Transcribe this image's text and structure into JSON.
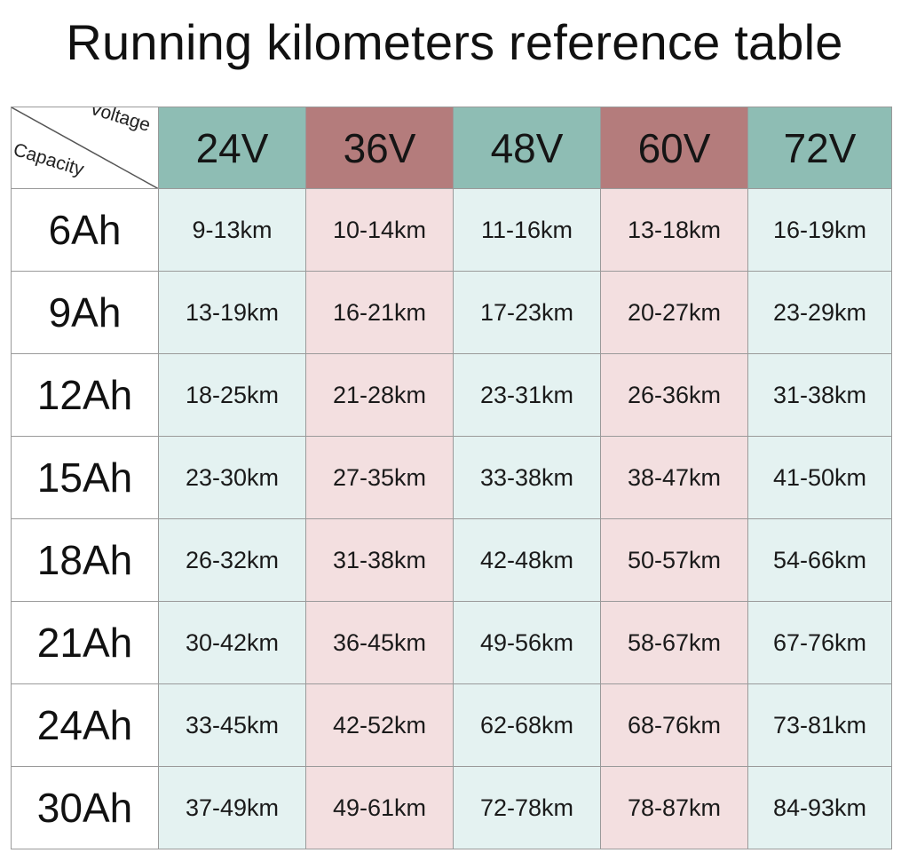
{
  "title": "Running kilometers reference table",
  "corner": {
    "top_label": "Voltage",
    "bottom_label": "Capacity"
  },
  "colors": {
    "header_teal": "#8ebdb4",
    "header_rose": "#b47c7c",
    "cell_teal": "#e4f2f1",
    "cell_rose": "#f3dfe0",
    "grid": "#9a9a9a"
  },
  "chart_data": {
    "type": "table",
    "title": "Running kilometers reference table",
    "row_header_label": "Capacity",
    "column_header_label": "Voltage",
    "columns": [
      "24V",
      "36V",
      "48V",
      "60V",
      "72V"
    ],
    "rows": [
      {
        "capacity": "6Ah",
        "values": [
          "9-13km",
          "10-14km",
          "11-16km",
          "13-18km",
          "16-19km"
        ]
      },
      {
        "capacity": "9Ah",
        "values": [
          "13-19km",
          "16-21km",
          "17-23km",
          "20-27km",
          "23-29km"
        ]
      },
      {
        "capacity": "12Ah",
        "values": [
          "18-25km",
          "21-28km",
          "23-31km",
          "26-36km",
          "31-38km"
        ]
      },
      {
        "capacity": "15Ah",
        "values": [
          "23-30km",
          "27-35km",
          "33-38km",
          "38-47km",
          "41-50km"
        ]
      },
      {
        "capacity": "18Ah",
        "values": [
          "26-32km",
          "31-38km",
          "42-48km",
          "50-57km",
          "54-66km"
        ]
      },
      {
        "capacity": "21Ah",
        "values": [
          "30-42km",
          "36-45km",
          "49-56km",
          "58-67km",
          "67-76km"
        ]
      },
      {
        "capacity": "24Ah",
        "values": [
          "33-45km",
          "42-52km",
          "62-68km",
          "68-76km",
          "73-81km"
        ]
      },
      {
        "capacity": "30Ah",
        "values": [
          "37-49km",
          "49-61km",
          "72-78km",
          "78-87km",
          "84-93km"
        ]
      }
    ]
  }
}
